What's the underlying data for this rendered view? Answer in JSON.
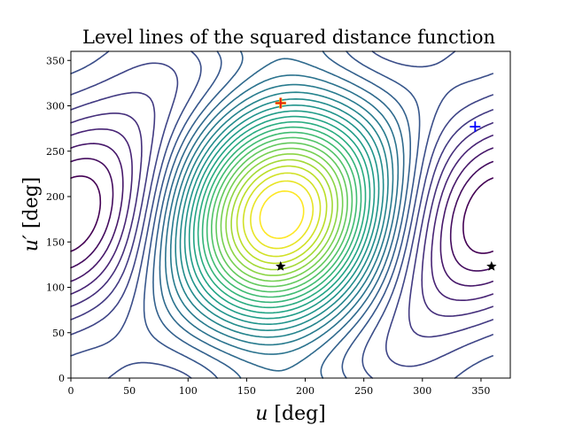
{
  "chart_data": {
    "type": "contour",
    "title": "Level lines of the squared distance function",
    "xlabel": "u [deg]",
    "ylabel": "u′ [deg]",
    "xlim": [
      0,
      375
    ],
    "ylim": [
      0,
      360
    ],
    "xticks": [
      0,
      50,
      100,
      150,
      200,
      250,
      300,
      350
    ],
    "yticks": [
      0,
      50,
      100,
      150,
      200,
      250,
      300,
      350
    ],
    "colormap": "viridis",
    "levels": 30,
    "grid": false,
    "markers": [
      {
        "type": "plus",
        "color": "#e41a1c",
        "x": 179,
        "y": 303
      },
      {
        "type": "plus-circle",
        "color": "#ffcc00",
        "x": 179,
        "y": 303
      },
      {
        "type": "plus",
        "color": "#0000ff",
        "x": 345,
        "y": 277
      },
      {
        "type": "star",
        "color": "#000000",
        "x": 179,
        "y": 123
      },
      {
        "type": "star",
        "color": "#000000",
        "x": 359,
        "y": 123
      }
    ]
  }
}
